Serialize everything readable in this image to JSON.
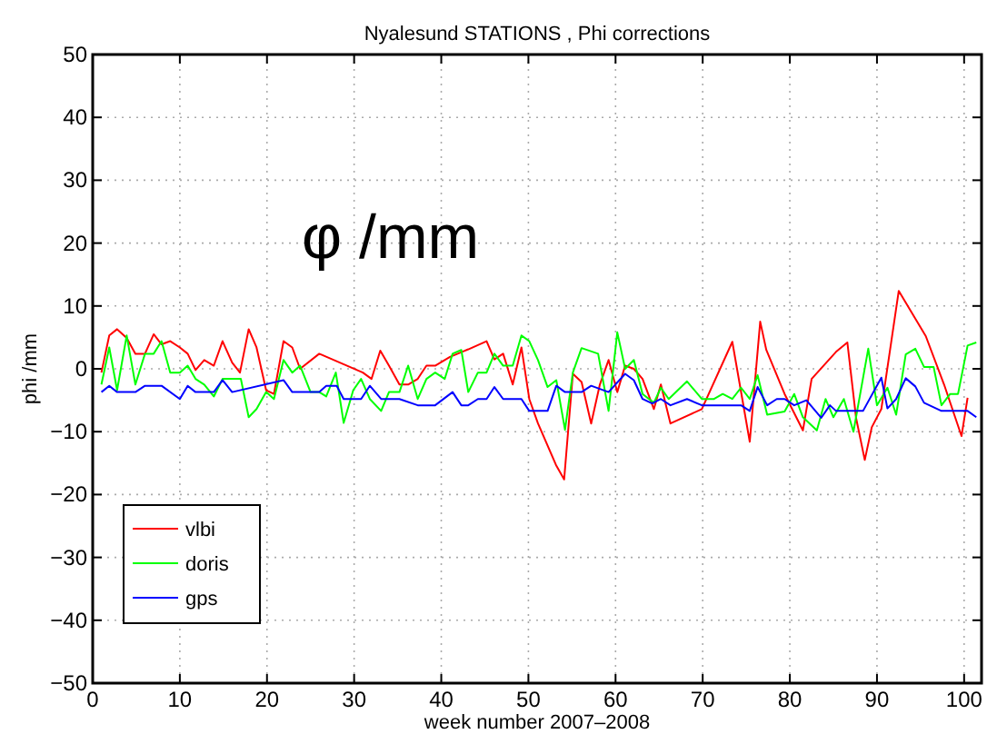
{
  "chart_data": {
    "type": "line",
    "title": "Nyalesund STATIONS , Phi corrections",
    "xlabel": "week number 2007–2008",
    "ylabel": "phi /mm",
    "annotations": [
      "φ /mm"
    ],
    "xlim": [
      0,
      102
    ],
    "xticks": [
      0,
      10,
      20,
      30,
      40,
      50,
      60,
      70,
      80,
      90,
      100
    ],
    "ylim": [
      -50,
      50
    ],
    "yticks": [
      {
        "value": -50,
        "label": "−50"
      },
      {
        "value": -40,
        "label": "−40"
      },
      {
        "value": -30,
        "label": "−30"
      },
      {
        "value": -20,
        "label": "−20"
      },
      {
        "value": -10,
        "label": "−10"
      },
      0,
      10,
      20,
      30,
      40,
      50
    ],
    "grid": true,
    "legend": "bottom left",
    "line_style": "solid",
    "marker": "none",
    "series": [
      {
        "name": "vlbi",
        "color": "#ff0000",
        "x": [
          1,
          1.9,
          2.8,
          3.9,
          4.9,
          6,
          7,
          7.9,
          8.9,
          10,
          10.9,
          11.8,
          12.8,
          13.9,
          14.9,
          16,
          16.9,
          17.9,
          18.8,
          19.9,
          20.8,
          21.9,
          22.9,
          23.8,
          26,
          31,
          32,
          33,
          34,
          35.2,
          36.2,
          37.3,
          38.3,
          39.3,
          41,
          43.1,
          45.2,
          46.1,
          47.1,
          48.2,
          49.2,
          50.1,
          51.1,
          53.2,
          54.1,
          55.1,
          56.1,
          57.2,
          58.2,
          59.2,
          60.2,
          61.1,
          62.1,
          63.1,
          64.4,
          65.2,
          66.3,
          69.9,
          73.4,
          75.4,
          76.6,
          77.3,
          79.4,
          81.5,
          82.5,
          85.3,
          86.6,
          87.6,
          88.6,
          89.4,
          90.5,
          92.5,
          95.6,
          97.7,
          99.7,
          100.4
        ],
        "values": [
          -0.6,
          5.3,
          6.3,
          4.9,
          2.4,
          2.4,
          5.5,
          3.9,
          4.4,
          3.4,
          2.4,
          -0.2,
          1.4,
          0.5,
          4.4,
          1,
          -0.6,
          6.3,
          3.4,
          -3.4,
          -4,
          4.4,
          3.4,
          0,
          2.4,
          -0.6,
          -1.6,
          2.9,
          0.5,
          -2.5,
          -2.5,
          -1.6,
          0.5,
          0.5,
          1.9,
          3.1,
          4.4,
          1.5,
          2.4,
          -2.5,
          3.4,
          -4.8,
          -8.7,
          -15.4,
          -17.6,
          -0.8,
          -2.1,
          -8.7,
          -2.5,
          1.4,
          -3.7,
          0.5,
          0,
          -1.6,
          -6.4,
          -2.5,
          -8.7,
          -6.4,
          4.3,
          -11.6,
          7.5,
          3,
          -4,
          -9.8,
          -1.6,
          2.7,
          4.2,
          -7.8,
          -14.5,
          -9.3,
          -6.4,
          12.4,
          5.2,
          -2.5,
          -10.7,
          -4.6
        ]
      },
      {
        "name": "doris",
        "color": "#00ff00",
        "x": [
          1,
          1.9,
          2.8,
          3.9,
          4.9,
          6,
          7,
          7.9,
          8.9,
          10,
          10.9,
          11.8,
          12.8,
          13.9,
          14.9,
          16,
          17,
          17.9,
          18.8,
          19.9,
          20.8,
          21.9,
          22.9,
          23.8,
          25,
          26,
          26.8,
          27.9,
          28.8,
          29.9,
          30.8,
          31.8,
          33.1,
          34,
          35.2,
          36.2,
          37.3,
          38.3,
          39.3,
          40.4,
          41.3,
          42.3,
          43.1,
          44.2,
          45.2,
          46.1,
          47.1,
          48.2,
          49.2,
          50.1,
          51.1,
          52.2,
          53.2,
          54.2,
          55.1,
          56.1,
          58,
          59.2,
          60.2,
          61.1,
          62.1,
          63.1,
          64.4,
          65.2,
          66.1,
          68.2,
          69.9,
          71.3,
          72.3,
          73.4,
          74.4,
          75.4,
          76.3,
          77.4,
          79.4,
          80.5,
          81.5,
          83.1,
          84.1,
          85,
          86.2,
          87.3,
          89,
          90,
          91.2,
          92.2,
          93.3,
          94.4,
          95.4,
          96.5,
          97.4,
          98.4,
          99.3,
          100.4,
          101.4
        ],
        "values": [
          -2.5,
          3.4,
          -3.4,
          5.3,
          -2.5,
          2.4,
          2.4,
          4.4,
          -0.6,
          -0.6,
          0.5,
          -1.6,
          -2.5,
          -4.4,
          -1.6,
          -1.6,
          -1.6,
          -7.7,
          -6.4,
          -3.7,
          -4.8,
          1.4,
          -0.6,
          0.5,
          -3.7,
          -3.7,
          -4.4,
          -0.6,
          -8.6,
          -3.4,
          -1.6,
          -4.8,
          -6.7,
          -3.7,
          -3.7,
          0.5,
          -4.8,
          -1.6,
          -0.6,
          -1.6,
          2.4,
          3,
          -3.7,
          -0.6,
          -0.6,
          2.4,
          0.5,
          0.5,
          5.3,
          4.4,
          1.4,
          -2.9,
          -1.8,
          -9.7,
          -0.6,
          3.3,
          2.4,
          -6.7,
          5.8,
          0,
          1.4,
          -4,
          -5.4,
          -3,
          -4.8,
          -2,
          -4.8,
          -4.8,
          -4,
          -4.8,
          -3,
          -4.8,
          -1,
          -7.3,
          -6.8,
          -4,
          -7.7,
          -9.8,
          -4.8,
          -7.7,
          -4.8,
          -10,
          3.2,
          -5.8,
          -3,
          -7.3,
          2.3,
          3.2,
          0.3,
          0.3,
          -5.8,
          -4,
          -4,
          3.7,
          4.2
        ]
      },
      {
        "name": "gps",
        "color": "#0000ff",
        "x": [
          1,
          1.9,
          2.8,
          4.9,
          6,
          7.9,
          10,
          10.9,
          11.8,
          13.9,
          14.9,
          16,
          21.9,
          22.9,
          26,
          26.8,
          28,
          28.8,
          30,
          30.8,
          31.8,
          33.1,
          35.2,
          37.3,
          39.3,
          41.3,
          42.3,
          43.1,
          44.2,
          45.2,
          46.1,
          47.1,
          49.2,
          50.1,
          52.2,
          53.2,
          54.2,
          56.1,
          57.2,
          59.2,
          61.1,
          62.1,
          63.1,
          64.2,
          65.2,
          66.3,
          68.2,
          69.9,
          74.4,
          75.4,
          76.3,
          77.4,
          78.5,
          79.4,
          80.5,
          81.9,
          83.6,
          84.6,
          85.3,
          88.4,
          90.5,
          91.2,
          92.2,
          93.3,
          94.4,
          95.4,
          97.4,
          100.4,
          101.4
        ],
        "values": [
          -3.7,
          -2.7,
          -3.7,
          -3.7,
          -2.7,
          -2.7,
          -4.8,
          -2.7,
          -3.7,
          -3.7,
          -1.8,
          -3.7,
          -1.8,
          -3.7,
          -3.7,
          -2.7,
          -2.7,
          -4.8,
          -4.8,
          -4.8,
          -2.7,
          -4.8,
          -4.8,
          -5.8,
          -5.8,
          -3.7,
          -5.8,
          -5.8,
          -4.8,
          -4.8,
          -2.9,
          -4.8,
          -4.8,
          -6.7,
          -6.7,
          -2.7,
          -3.7,
          -3.7,
          -2.7,
          -3.7,
          -0.8,
          -1.8,
          -4.8,
          -5.5,
          -4.8,
          -5.8,
          -4.8,
          -5.8,
          -5.8,
          -6.7,
          -2.9,
          -5.8,
          -4.8,
          -4.8,
          -5.8,
          -5,
          -7.8,
          -5.8,
          -6.7,
          -6.7,
          -1.4,
          -6.3,
          -4.8,
          -1.5,
          -2.8,
          -5.4,
          -6.7,
          -6.7,
          -7.7
        ]
      }
    ]
  }
}
